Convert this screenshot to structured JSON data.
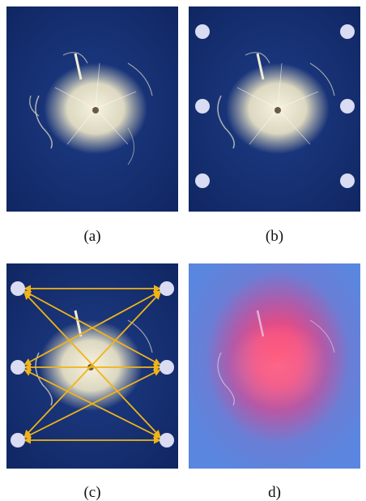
{
  "captions": {
    "a": "(a)",
    "b": "(b)",
    "c": "(c)",
    "d": "d)"
  },
  "colors": {
    "background_blue": "#142e6e",
    "glass_white": "#f3f0dc",
    "sensor_dot": "#d9dcf2",
    "arrow": "#f0b418",
    "heatmap_blue": "#5a86df",
    "heatmap_red": "#ff3a63"
  },
  "panels": [
    {
      "id": "a",
      "description_key": "cracked-glass",
      "show_sensors": false,
      "show_paths": false,
      "heatmap": false
    },
    {
      "id": "b",
      "description_key": "cracked-glass-with-sensors",
      "show_sensors": true,
      "show_paths": false,
      "heatmap": false
    },
    {
      "id": "c",
      "description_key": "cracked-glass-with-sensor-paths",
      "show_sensors": true,
      "show_paths": true,
      "heatmap": false
    },
    {
      "id": "d",
      "description_key": "damage-heatmap",
      "show_sensors": false,
      "show_paths": false,
      "heatmap": true
    }
  ]
}
